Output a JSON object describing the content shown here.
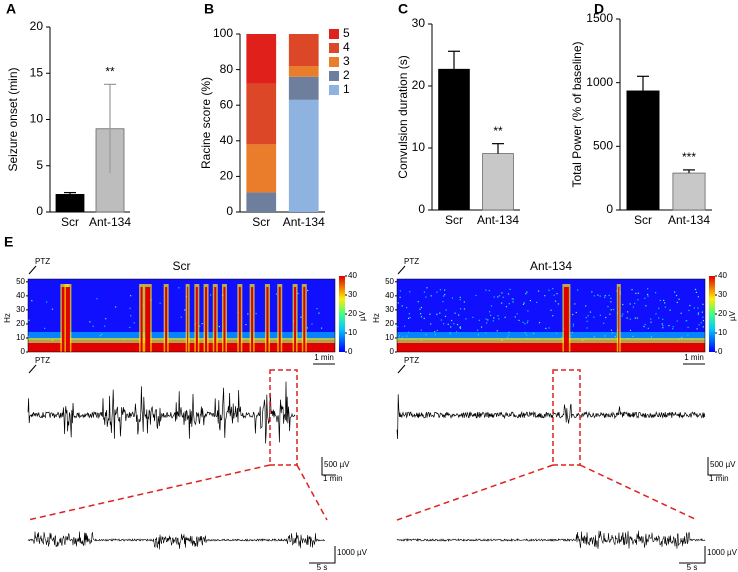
{
  "chart_data": [
    {
      "type": "bar",
      "panel_label": "A",
      "y_label": "Seizure onset (min)",
      "categories": [
        "Scr",
        "Ant-134"
      ],
      "values": [
        1.9,
        9.0
      ],
      "errors": [
        0.2,
        4.8
      ],
      "colors": [
        "#000000",
        "#bdbdbd"
      ],
      "error_direction": "both",
      "significance": [
        null,
        "**"
      ],
      "ylim": [
        0,
        20
      ],
      "yticks": [
        0,
        5,
        10,
        15,
        20
      ]
    },
    {
      "type": "stacked_bar",
      "panel_label": "B",
      "y_label": "Racine score (%)",
      "categories": [
        "Scr",
        "Ant-134"
      ],
      "series": [
        {
          "name": "1",
          "color": "#8fb3e0",
          "values": [
            0,
            63
          ]
        },
        {
          "name": "2",
          "color": "#6e7f9e",
          "values": [
            11,
            13
          ]
        },
        {
          "name": "3",
          "color": "#ea7d2c",
          "values": [
            27,
            6
          ]
        },
        {
          "name": "4",
          "color": "#db4727",
          "values": [
            34,
            18
          ]
        },
        {
          "name": "5",
          "color": "#e0201b",
          "values": [
            28,
            0
          ]
        }
      ],
      "ylim": [
        0,
        100
      ],
      "yticks": [
        0,
        20,
        40,
        60,
        80,
        100
      ],
      "legend": "right"
    },
    {
      "type": "bar",
      "panel_label": "C",
      "y_label": "Convulsion duration (s)",
      "categories": [
        "Scr",
        "Ant-134"
      ],
      "values": [
        22.7,
        9.1
      ],
      "errors": [
        2.9,
        1.6
      ],
      "colors": [
        "#000000",
        "#c8c8c8"
      ],
      "error_direction": "up",
      "significance": [
        null,
        "**"
      ],
      "ylim": [
        0,
        30
      ],
      "yticks": [
        0,
        10,
        20,
        30
      ]
    },
    {
      "type": "bar",
      "panel_label": "D",
      "y_label": "Total Power (% of baseline)",
      "categories": [
        "Scr",
        "Ant-134"
      ],
      "values": [
        935,
        290
      ],
      "errors": [
        115,
        25
      ],
      "colors": [
        "#000000",
        "#c8c8c8"
      ],
      "error_direction": "up",
      "significance": [
        null,
        "***"
      ],
      "ylim": [
        0,
        1500
      ],
      "yticks": [
        0,
        500,
        1000,
        1500
      ]
    }
  ],
  "eeg": {
    "panel_label": "E",
    "left": {
      "title": "Scr",
      "spectrogram": {
        "ptz": "PTZ",
        "y_label": "Hz",
        "ylim": [
          0,
          52
        ],
        "yticks": [
          0,
          10,
          20,
          30,
          40,
          50
        ],
        "colorbar_label": "µV",
        "colorbar_lim": [
          0,
          40
        ],
        "colorbar_ticks": [
          0,
          10,
          20,
          30,
          40
        ],
        "time_scale": "1 min"
      },
      "trace": {
        "ptz": "PTZ",
        "amplitude_scale": "500 µV",
        "time_scale": "1 min"
      },
      "zoom": {
        "amplitude_scale": "1000 µV",
        "time_scale": "5 s"
      }
    },
    "right": {
      "title": "Ant-134",
      "spectrogram": {
        "ptz": "PTZ",
        "y_label": "Hz",
        "ylim": [
          0,
          52
        ],
        "yticks": [
          0,
          10,
          20,
          30,
          40,
          50
        ],
        "colorbar_label": "µV",
        "colorbar_lim": [
          0,
          40
        ],
        "colorbar_ticks": [
          0,
          10,
          20,
          30,
          40
        ],
        "time_scale": "1 min"
      },
      "trace": {
        "ptz": "PTZ",
        "amplitude_scale": "500 µV",
        "time_scale": "1 min"
      },
      "zoom": {
        "amplitude_scale": "1000 µV",
        "time_scale": "5 s"
      }
    }
  }
}
